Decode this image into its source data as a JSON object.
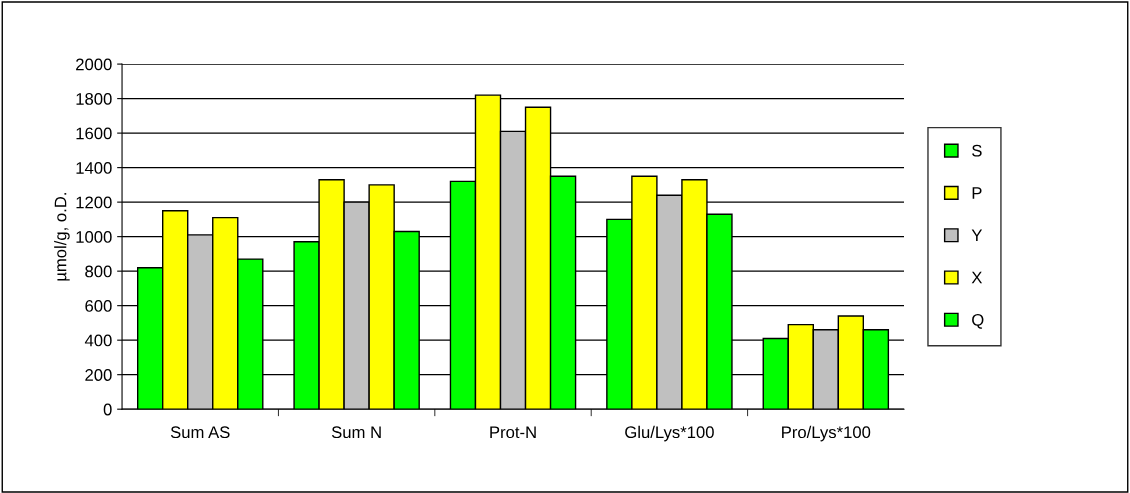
{
  "chart_data": {
    "type": "bar",
    "ylabel": "µmol/g, o.D.",
    "categories": [
      "Sum AS",
      "Sum N",
      "Prot-N",
      "Glu/Lys*100",
      "Pro/Lys*100"
    ],
    "series": [
      {
        "name": "S",
        "color": "#00ff00",
        "values": [
          820,
          970,
          1320,
          1100,
          410
        ]
      },
      {
        "name": "P",
        "color": "#ffff00",
        "values": [
          1150,
          1330,
          1820,
          1350,
          490
        ]
      },
      {
        "name": "Y",
        "color": "#c0c0c0",
        "values": [
          1010,
          1200,
          1610,
          1240,
          460
        ]
      },
      {
        "name": "X",
        "color": "#ffff00",
        "values": [
          1110,
          1300,
          1750,
          1330,
          540
        ]
      },
      {
        "name": "Q",
        "color": "#00ff00",
        "values": [
          870,
          1030,
          1350,
          1130,
          460
        ]
      }
    ],
    "ylim": [
      0,
      2000
    ],
    "yticks": [
      0,
      200,
      400,
      600,
      800,
      1000,
      1200,
      1400,
      1600,
      1800,
      2000
    ],
    "grid": "y",
    "legend": "right"
  }
}
